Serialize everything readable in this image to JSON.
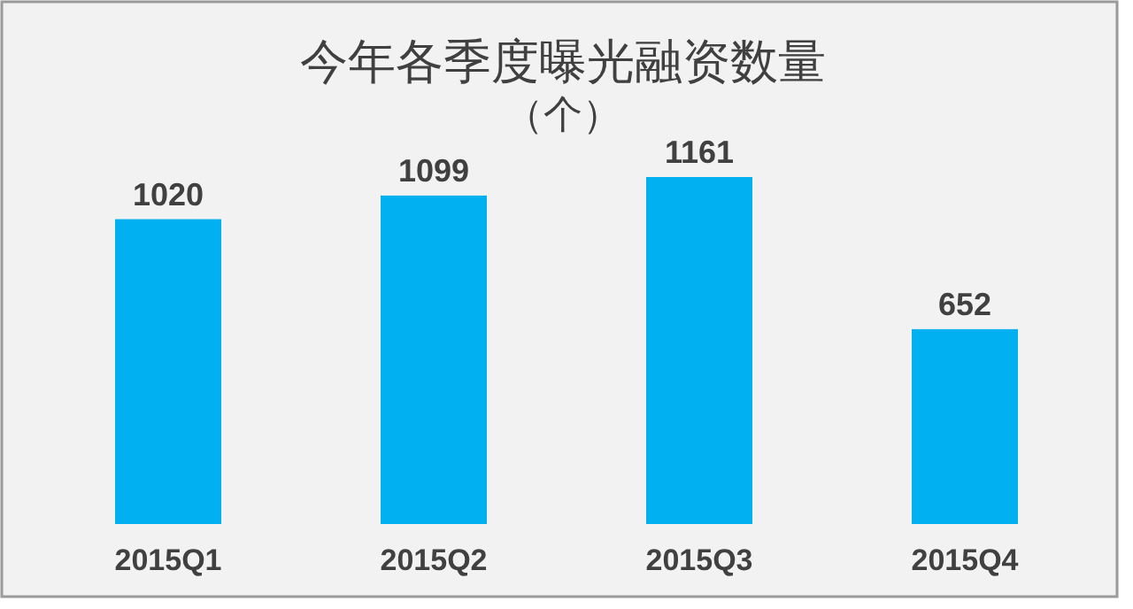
{
  "chart_data": {
    "type": "bar",
    "title": "今年各季度曝光融资数量",
    "subtitle": "（个）",
    "categories": [
      "2015Q1",
      "2015Q2",
      "2015Q3",
      "2015Q4"
    ],
    "values": [
      1020,
      1099,
      1161,
      652
    ],
    "color": "#00b0f0",
    "data_labels": true
  }
}
